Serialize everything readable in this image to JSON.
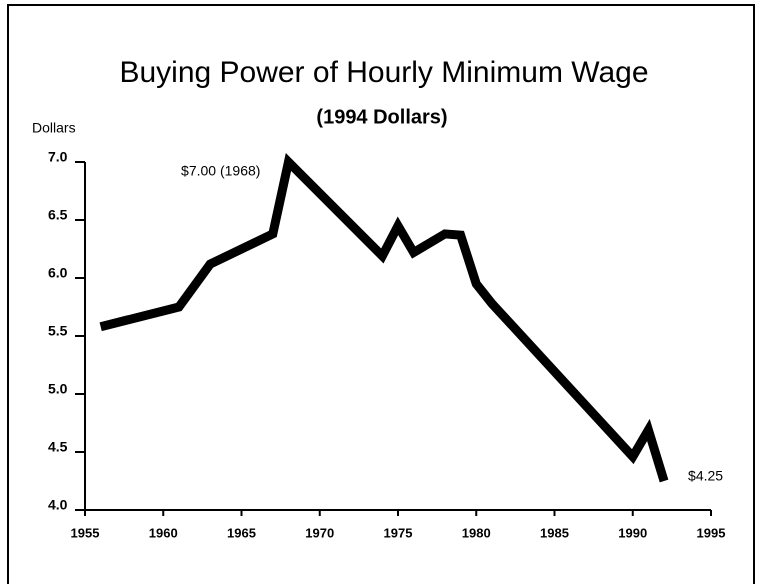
{
  "chart_data": {
    "type": "line",
    "title": "Buying Power of Hourly Minimum Wage",
    "subtitle": "(1994 Dollars)",
    "y_label": "Dollars",
    "x": [
      1956,
      1961,
      1963,
      1967,
      1968,
      1974,
      1975,
      1976,
      1978,
      1979,
      1980,
      1981,
      1990,
      1991,
      1992
    ],
    "series": [
      {
        "name": "Buying power",
        "color": "#000000",
        "values": [
          5.58,
          5.75,
          6.12,
          6.38,
          7.0,
          6.19,
          6.45,
          6.22,
          6.38,
          6.37,
          5.95,
          5.78,
          4.46,
          4.69,
          4.25
        ]
      }
    ],
    "annotations": [
      "$7.00 (1968)",
      "$4.25"
    ],
    "xlim": [
      1955,
      1995
    ],
    "xticks": [
      1955,
      1960,
      1965,
      1970,
      1975,
      1980,
      1985,
      1990,
      1995
    ],
    "ylim": [
      4.0,
      7.0
    ],
    "yticks": [
      {
        "value": 4.0,
        "label": "4.0"
      },
      {
        "value": 4.5,
        "label": "4.5"
      },
      {
        "value": 5.0,
        "label": "5.0"
      },
      {
        "value": 5.5,
        "label": "5.5"
      },
      {
        "value": 6.0,
        "label": "6.0"
      },
      {
        "value": 6.5,
        "label": "6.5"
      },
      {
        "value": 7.0,
        "label": "7.0"
      }
    ],
    "grid": false
  }
}
